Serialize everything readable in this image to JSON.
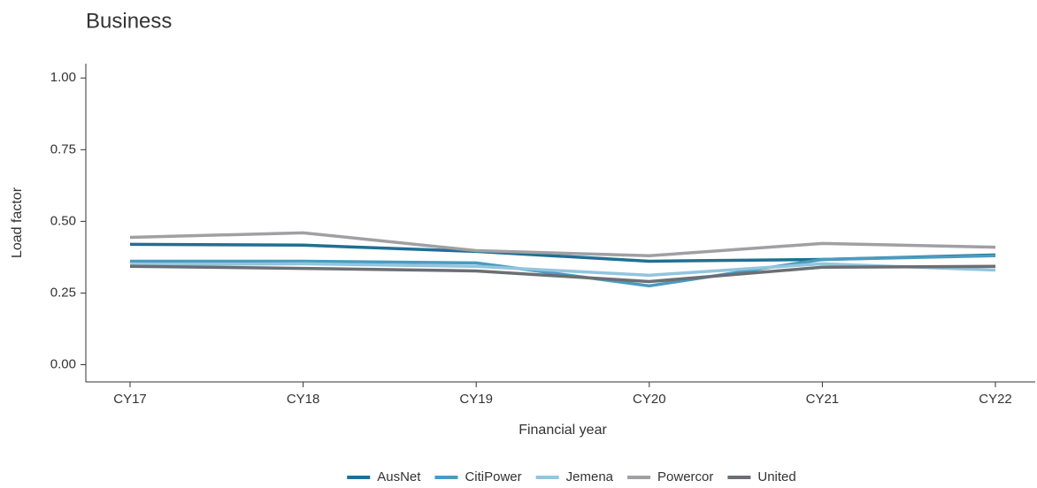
{
  "chart_data": {
    "type": "line",
    "title": "Business",
    "x_label": "Financial year",
    "y_label": "Load factor",
    "categories": [
      "CY17",
      "CY18",
      "CY19",
      "CY20",
      "CY21",
      "CY22"
    ],
    "series": [
      {
        "name": "AusNet",
        "color": "#1f6f94",
        "values": [
          0.42,
          0.417,
          0.395,
          0.361,
          0.367,
          0.383
        ]
      },
      {
        "name": "CitiPower",
        "color": "#4a9bc0",
        "values": [
          0.361,
          0.361,
          0.355,
          0.275,
          0.367,
          0.38
        ]
      },
      {
        "name": "Jemena",
        "color": "#92c5de",
        "values": [
          0.349,
          0.352,
          0.343,
          0.312,
          0.352,
          0.33
        ]
      },
      {
        "name": "Powercor",
        "color": "#a0a0a4",
        "values": [
          0.444,
          0.46,
          0.398,
          0.38,
          0.423,
          0.41
        ]
      },
      {
        "name": "United",
        "color": "#6b6e72",
        "values": [
          0.343,
          0.336,
          0.327,
          0.29,
          0.34,
          0.343
        ]
      }
    ],
    "ylim": [
      -0.06,
      1.05
    ],
    "yticks": [
      {
        "value": 0,
        "label": "0.00"
      },
      {
        "value": 0.25,
        "label": "0.25"
      },
      {
        "value": 0.5,
        "label": "0.50"
      },
      {
        "value": 0.75,
        "label": "0.75"
      },
      {
        "value": 1,
        "label": "1.00"
      }
    ],
    "legend": "bottom"
  }
}
